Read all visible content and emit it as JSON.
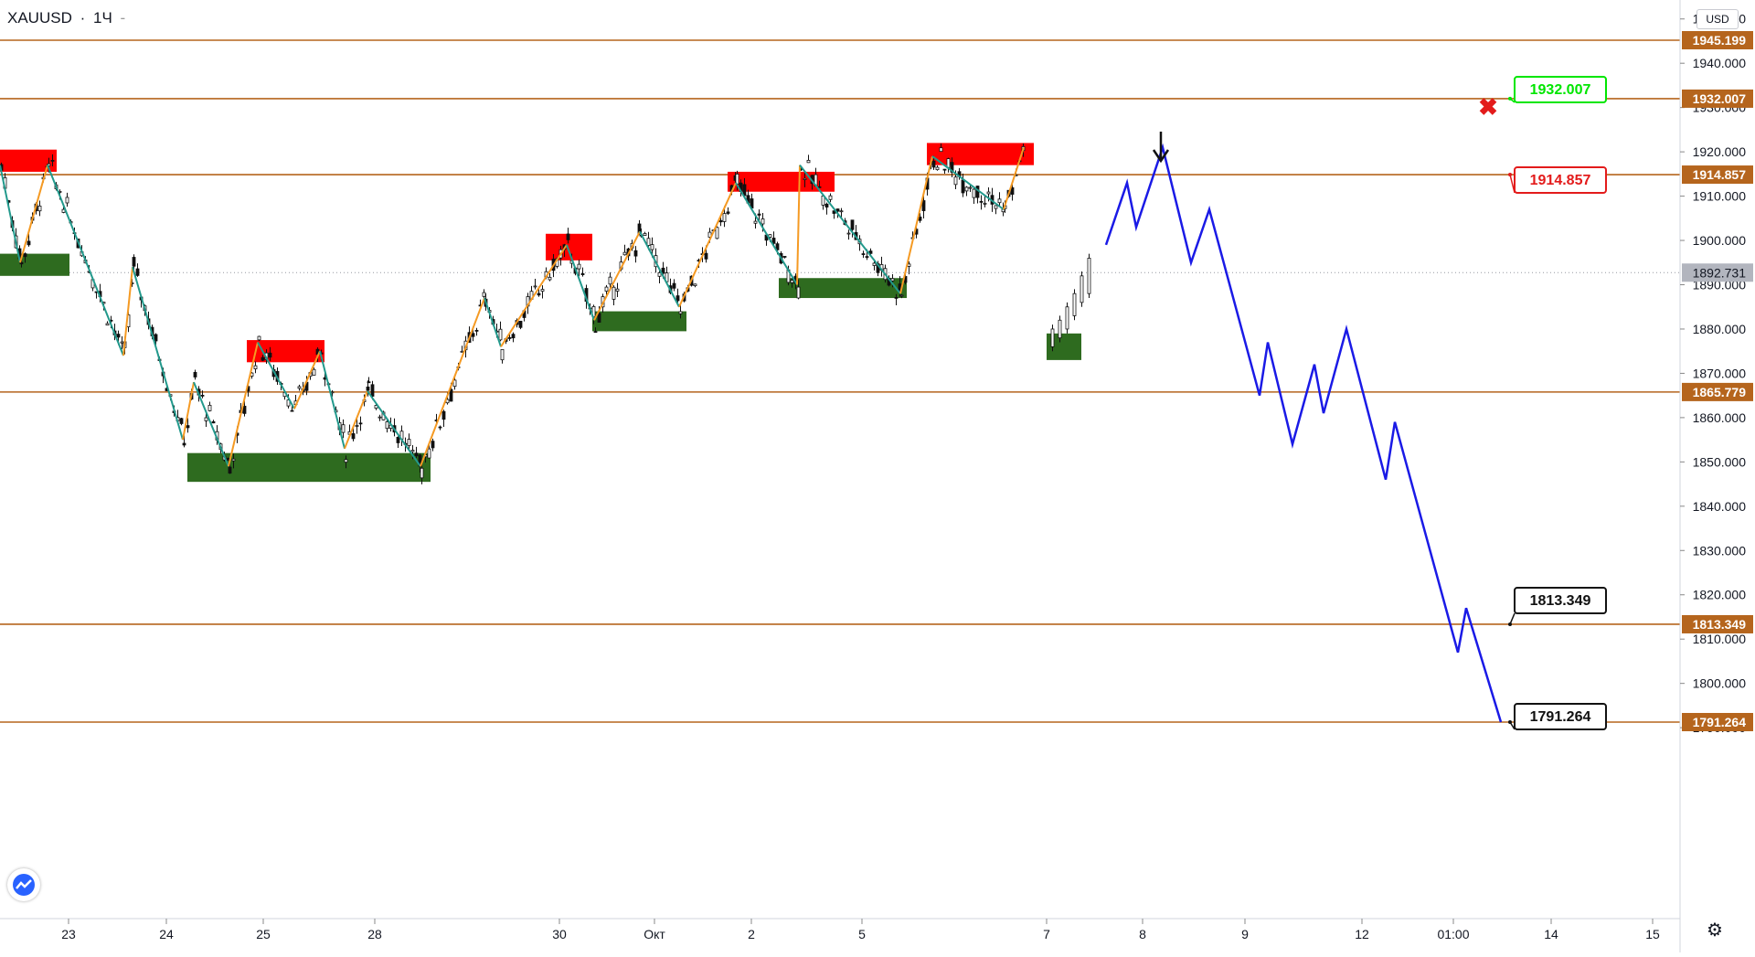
{
  "header": {
    "symbol": "XAUUSD",
    "separator": "·",
    "interval": "1Ч",
    "dash": "-"
  },
  "currency_button": "USD",
  "icons": {
    "logo": "tradingview-cloud-icon",
    "settings": "gear-icon",
    "cross": "x-mark-icon",
    "arrow": "arrow-down-icon"
  },
  "colors": {
    "level_line": "#b5651d",
    "level_badge": "#b5651d",
    "bull_candle_line": "#2e7d32",
    "demand_zone": "#2e6b1f",
    "supply_zone": "#ff0000",
    "zigzag_up": "#f59a23",
    "zigzag_down": "#22998c",
    "forecast": "#1a1ae6",
    "target_green": "#00e600",
    "target_red": "#e31b1b",
    "price_badge": "#b2b5be"
  },
  "chart_data": {
    "type": "candlestick",
    "symbol": "XAUUSD",
    "timeframe": "1Ч",
    "ylim": [
      1787,
      1952
    ],
    "price_ticks": [
      "1950.000",
      "1940.000",
      "1930.000",
      "1920.000",
      "1910.000",
      "1900.000",
      "1890.000",
      "1880.000",
      "1870.000",
      "1860.000",
      "1850.000",
      "1840.000",
      "1830.000",
      "1820.000",
      "1810.000",
      "1800.000",
      "1790.000"
    ],
    "date_ticks": [
      "23",
      "24",
      "25",
      "28",
      "30",
      "Окт",
      "2",
      "5",
      "7",
      "8",
      "9",
      "12",
      "01:00",
      "14",
      "15"
    ],
    "horizontal_levels": [
      {
        "value": 1945.199,
        "label": "1945.199"
      },
      {
        "value": 1932.007,
        "label": "1932.007"
      },
      {
        "value": 1914.857,
        "label": "1914.857"
      },
      {
        "value": 1865.779,
        "label": "1865.779"
      },
      {
        "value": 1813.349,
        "label": "1813.349"
      },
      {
        "value": 1791.264,
        "label": "1791.264"
      }
    ],
    "current_price": {
      "value": 1892.731,
      "label": "1892.731"
    },
    "target_callouts": [
      {
        "label": "1932.007",
        "value": 1932.007,
        "style": "green"
      },
      {
        "label": "1914.857",
        "value": 1914.857,
        "style": "red"
      },
      {
        "label": "1813.349",
        "value": 1813.349,
        "style": "black"
      },
      {
        "label": "1791.264",
        "value": 1791.264,
        "style": "black"
      }
    ],
    "supply_zones": [
      {
        "from": "2020-09-22",
        "to": "2020-09-23",
        "low": 1915.5,
        "high": 1920.5
      },
      {
        "from": "2020-09-25",
        "to": "2020-09-26",
        "low": 1872.5,
        "high": 1877.5
      },
      {
        "from": "2020-09-30",
        "to": "2020-09-30",
        "low": 1895.5,
        "high": 1901.5
      },
      {
        "from": "2020-10-01",
        "to": "2020-10-02",
        "low": 1911.0,
        "high": 1915.5
      },
      {
        "from": "2020-10-05",
        "to": "2020-10-06",
        "low": 1917.0,
        "high": 1922.0
      }
    ],
    "demand_zones": [
      {
        "from": "2020-09-22",
        "to": "2020-09-23",
        "low": 1892.0,
        "high": 1897.0
      },
      {
        "from": "2020-09-24",
        "to": "2020-09-28",
        "low": 1845.5,
        "high": 1852.0
      },
      {
        "from": "2020-09-30",
        "to": "2020-10-01",
        "low": 1879.5,
        "high": 1884.0
      },
      {
        "from": "2020-10-02",
        "to": "2020-10-05",
        "low": 1887.0,
        "high": 1891.5
      },
      {
        "from": "2020-10-06",
        "to": "2020-10-07",
        "low": 1873.0,
        "high": 1879.0
      }
    ],
    "forecast_path": [
      {
        "date": "2020-10-07",
        "value": 1899
      },
      {
        "date": "2020-10-07",
        "value": 1913
      },
      {
        "date": "2020-10-07",
        "value": 1903
      },
      {
        "date": "2020-10-08",
        "value": 1921
      },
      {
        "date": "2020-10-08",
        "value": 1895
      },
      {
        "date": "2020-10-08",
        "value": 1907
      },
      {
        "date": "2020-10-09",
        "value": 1865
      },
      {
        "date": "2020-10-09",
        "value": 1877
      },
      {
        "date": "2020-10-09",
        "value": 1854
      },
      {
        "date": "2020-10-09",
        "value": 1872
      },
      {
        "date": "2020-10-12",
        "value": 1861
      },
      {
        "date": "2020-10-12",
        "value": 1880
      },
      {
        "date": "2020-10-12",
        "value": 1846
      },
      {
        "date": "2020-10-12",
        "value": 1859
      },
      {
        "date": "2020-10-13",
        "value": 1807
      },
      {
        "date": "2020-10-13",
        "value": 1817
      },
      {
        "date": "2020-10-13",
        "value": 1791.264
      }
    ],
    "zigzag": [
      {
        "value": 1917,
        "dir": "down"
      },
      {
        "value": 1895,
        "dir": "up"
      },
      {
        "value": 1917,
        "dir": "down"
      },
      {
        "value": 1874,
        "dir": "up"
      },
      {
        "value": 1894,
        "dir": "down"
      },
      {
        "value": 1855,
        "dir": "up"
      },
      {
        "value": 1868,
        "dir": "down"
      },
      {
        "value": 1849,
        "dir": "up"
      },
      {
        "value": 1877,
        "dir": "down"
      },
      {
        "value": 1862,
        "dir": "up"
      },
      {
        "value": 1875,
        "dir": "down"
      },
      {
        "value": 1853,
        "dir": "up"
      },
      {
        "value": 1866,
        "dir": "down"
      },
      {
        "value": 1849,
        "dir": "up"
      },
      {
        "value": 1887,
        "dir": "down"
      },
      {
        "value": 1876,
        "dir": "up"
      },
      {
        "value": 1899,
        "dir": "down"
      },
      {
        "value": 1882,
        "dir": "up"
      },
      {
        "value": 1902,
        "dir": "down"
      },
      {
        "value": 1885,
        "dir": "up"
      },
      {
        "value": 1913,
        "dir": "down"
      },
      {
        "value": 1890,
        "dir": "up"
      },
      {
        "value": 1917,
        "dir": "down"
      },
      {
        "value": 1888,
        "dir": "up"
      },
      {
        "value": 1919,
        "dir": "down"
      },
      {
        "value": 1907,
        "dir": "up"
      },
      {
        "value": 1921,
        "dir": "down"
      }
    ]
  }
}
